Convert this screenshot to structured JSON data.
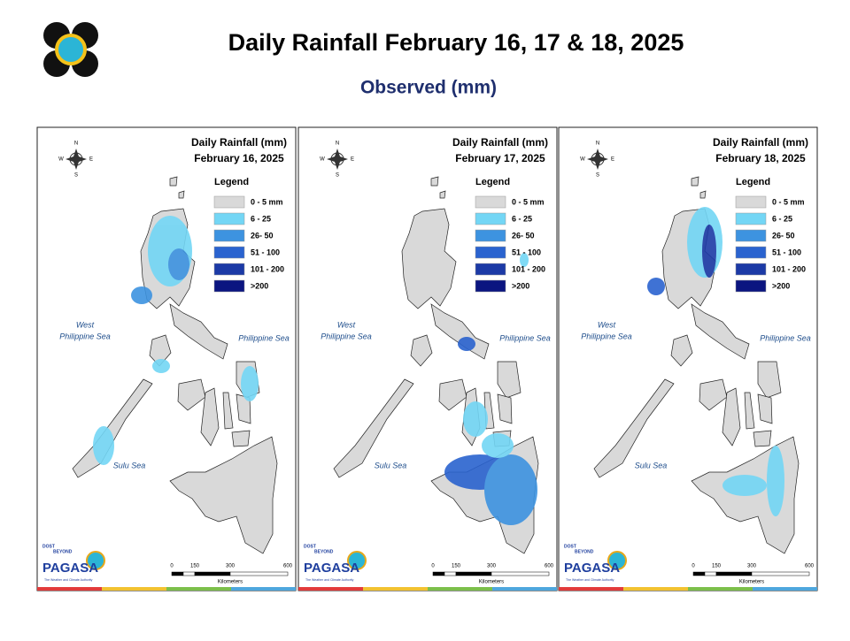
{
  "header": {
    "title": "Daily Rainfall February 16, 17 & 18, 2025",
    "subtitle": "Observed (mm)"
  },
  "legend": {
    "title": "Legend",
    "items": [
      {
        "label": "0 - 5 mm",
        "color": "#d9d9d9"
      },
      {
        "label": "6 - 25",
        "color": "#73d6f5"
      },
      {
        "label": "26- 50",
        "color": "#3d93e0"
      },
      {
        "label": "51 - 100",
        "color": "#2a63cf"
      },
      {
        "label": "101 - 200",
        "color": "#1c3aa6"
      },
      {
        "label": ">200",
        "color": "#0b1580"
      }
    ]
  },
  "panels": [
    {
      "title": "Daily Rainfall (mm)",
      "date": "February 16, 2025"
    },
    {
      "title": "Daily Rainfall (mm)",
      "date": "February 17, 2025"
    },
    {
      "title": "Daily Rainfall (mm)",
      "date": "February 18, 2025"
    }
  ],
  "map_labels": {
    "west_sea": [
      "West",
      "Philippine Sea"
    ],
    "east_sea": "Philippine Sea",
    "south_sea": "Sulu Sea"
  },
  "compass": {
    "n": "N",
    "e": "E",
    "s": "S",
    "w": "W"
  },
  "scale": {
    "ticks": [
      "0",
      "150",
      "300",
      "600"
    ],
    "unit": "Kilometers"
  },
  "logo": {
    "dept": "DOST",
    "tagline": "BEYOND",
    "name": "PAGASA",
    "motto": "The Weather and Climate Authority"
  }
}
